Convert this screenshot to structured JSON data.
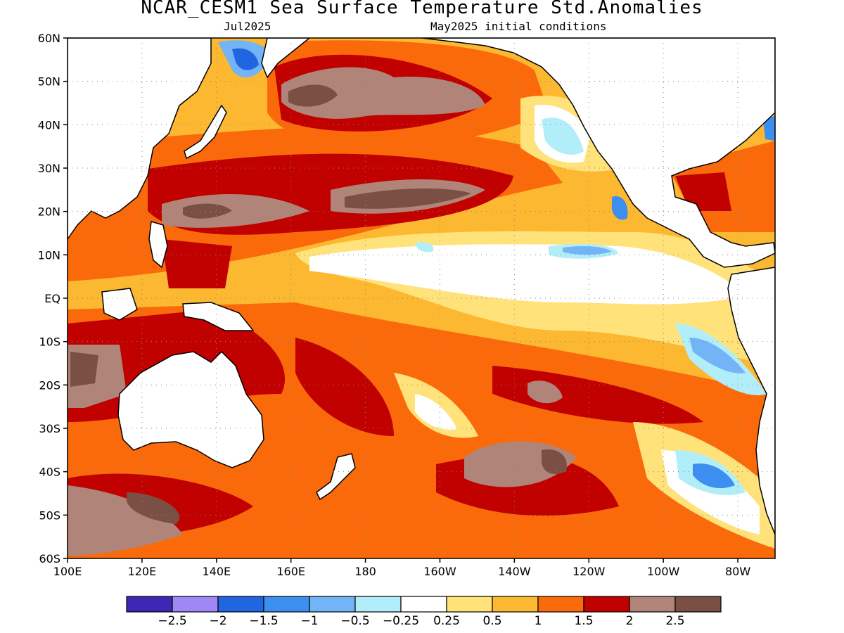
{
  "title": "NCAR_CESM1 Sea Surface Temperature Std.Anomalies",
  "subtitle_left": "Jul2025",
  "subtitle_right": "May2025 initial conditions",
  "map": {
    "lat_labels": [
      "60N",
      "50N",
      "40N",
      "30N",
      "20N",
      "10N",
      "EQ",
      "10S",
      "20S",
      "30S",
      "40S",
      "50S",
      "60S"
    ],
    "lon_labels": [
      "100E",
      "120E",
      "140E",
      "160E",
      "180",
      "160W",
      "140W",
      "120W",
      "100W",
      "80W"
    ],
    "lat_range": [
      -60,
      60
    ],
    "lon_range": [
      100,
      290
    ],
    "grid": "dotted"
  },
  "colorbar": {
    "colors": [
      "#3c28b4",
      "#9f87f5",
      "#2166e0",
      "#3c8ff0",
      "#73b4f7",
      "#b2eef9",
      "#ffffff",
      "#ffe27a",
      "#fdb832",
      "#fa6a0a",
      "#c10000",
      "#b08478",
      "#7a5044"
    ],
    "labels": [
      "−2.5",
      "−2",
      "−1.5",
      "−1",
      "−0.5",
      "−0.25",
      "0.25",
      "0.5",
      "1",
      "1.5",
      "2",
      "2.5"
    ]
  },
  "land_color": "#ffffff",
  "coast_color": "#000000"
}
